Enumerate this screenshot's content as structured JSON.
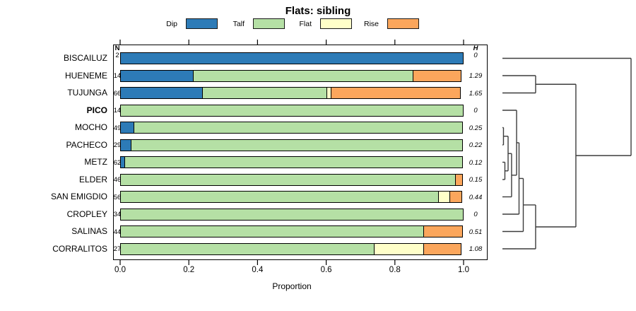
{
  "title": "Flats: sibling",
  "xlabel": "Proportion",
  "columns": {
    "n_header": "N",
    "h_header": "H"
  },
  "legend": [
    {
      "label": "Dip",
      "color": "#2D7BB7"
    },
    {
      "label": "Talf",
      "color": "#B5E0A5"
    },
    {
      "label": "Flat",
      "color": "#FFFFC9"
    },
    {
      "label": "Rise",
      "color": "#FBA65C"
    }
  ],
  "chart_data": {
    "type": "bar",
    "subtype": "horizontal_stacked_proportion",
    "title": "Flats: sibling",
    "xlabel": "Proportion",
    "xlim": [
      0,
      1
    ],
    "x_ticks": [
      "0.0",
      "0.2",
      "0.4",
      "0.6",
      "0.8",
      "1.0"
    ],
    "segment_keys": [
      "dip",
      "talf",
      "flat",
      "rise"
    ],
    "rows": [
      {
        "name": "BISCAILUZ",
        "bold": false,
        "n": "2",
        "h": "0",
        "dip": 1.0,
        "talf": 0,
        "flat": 0,
        "rise": 0
      },
      {
        "name": "HUENEME",
        "bold": false,
        "n": "14",
        "h": "1.29",
        "dip": 0.214,
        "talf": 0.643,
        "flat": 0,
        "rise": 0.143
      },
      {
        "name": "TUJUNGA",
        "bold": false,
        "n": "66",
        "h": "1.65",
        "dip": 0.242,
        "talf": 0.364,
        "flat": 0.015,
        "rise": 0.379
      },
      {
        "name": "PICO",
        "bold": true,
        "n": "14",
        "h": "0",
        "dip": 0,
        "talf": 1.0,
        "flat": 0,
        "rise": 0
      },
      {
        "name": "MOCHO",
        "bold": false,
        "n": "49",
        "h": "0.25",
        "dip": 0.041,
        "talf": 0.959,
        "flat": 0,
        "rise": 0
      },
      {
        "name": "PACHECO",
        "bold": false,
        "n": "29",
        "h": "0.22",
        "dip": 0.034,
        "talf": 0.966,
        "flat": 0,
        "rise": 0
      },
      {
        "name": "METZ",
        "bold": false,
        "n": "62",
        "h": "0.12",
        "dip": 0.016,
        "talf": 0.984,
        "flat": 0,
        "rise": 0
      },
      {
        "name": "ELDER",
        "bold": false,
        "n": "46",
        "h": "0.15",
        "dip": 0,
        "talf": 0.978,
        "flat": 0,
        "rise": 0.022
      },
      {
        "name": "SAN EMIGDIO",
        "bold": false,
        "n": "56",
        "h": "0.44",
        "dip": 0,
        "talf": 0.929,
        "flat": 0.036,
        "rise": 0.036
      },
      {
        "name": "CROPLEY",
        "bold": false,
        "n": "34",
        "h": "0",
        "dip": 0,
        "talf": 1.0,
        "flat": 0,
        "rise": 0
      },
      {
        "name": "SALINAS",
        "bold": false,
        "n": "44",
        "h": "0.51",
        "dip": 0,
        "talf": 0.886,
        "flat": 0,
        "rise": 0.114
      },
      {
        "name": "CORRALITOS",
        "bold": false,
        "n": "27",
        "h": "1.08",
        "dip": 0,
        "talf": 0.741,
        "flat": 0.148,
        "rise": 0.111
      }
    ],
    "dendrogram": {
      "position": "right",
      "leaf_order": [
        "BISCAILUZ",
        "HUENEME",
        "TUJUNGA",
        "PICO",
        "MOCHO",
        "PACHECO",
        "METZ",
        "ELDER",
        "SAN EMIGDIO",
        "CROPLEY",
        "SALINAS",
        "CORRALITOS"
      ],
      "merges": [
        {
          "a": "MOCHO",
          "b": "PACHECO",
          "height": 0.008
        },
        {
          "a": "METZ",
          "b": "ELDER",
          "height": 0.019
        },
        {
          "a": "#0",
          "b": "#1",
          "height": 0.044
        },
        {
          "a": "#2",
          "b": "SAN EMIGDIO",
          "height": 0.071
        },
        {
          "a": "PICO",
          "b": "#3",
          "height": 0.11
        },
        {
          "a": "#4",
          "b": "CROPLEY",
          "height": 0.129
        },
        {
          "a": "#5",
          "b": "SALINAS",
          "height": 0.162
        },
        {
          "a": "#6",
          "b": "CORRALITOS",
          "height": 0.258
        },
        {
          "a": "HUENEME",
          "b": "TUJUNGA",
          "height": 0.258
        },
        {
          "a": "#8",
          "b": "#7",
          "height": 0.571
        },
        {
          "a": "BISCAILUZ",
          "b": "#9",
          "height": 1.0
        }
      ]
    }
  }
}
